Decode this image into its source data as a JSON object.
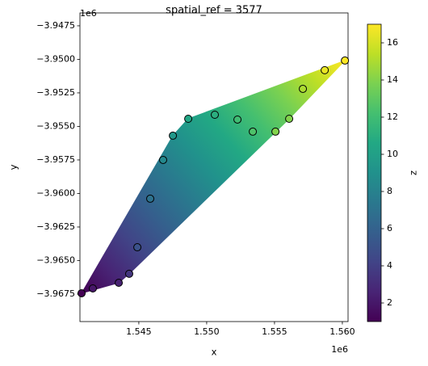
{
  "chart_data": {
    "type": "scatter",
    "title": "spatial_ref = 3577",
    "x_label": "x",
    "y_label": "y",
    "x_offset": "1e6",
    "y_offset": "1e6",
    "colorbar_label": "z",
    "colormap": "viridis",
    "x": [
      1.54078,
      1.54161,
      1.54352,
      1.54429,
      1.54489,
      1.54584,
      1.54679,
      1.54751,
      1.54864,
      1.5506,
      1.55227,
      1.5534,
      1.55507,
      1.55608,
      1.55709,
      1.5587,
      1.56019
    ],
    "y": [
      -3.96744,
      -3.96708,
      -3.96666,
      -3.96599,
      -3.96401,
      -3.96039,
      -3.9575,
      -3.95569,
      -3.95443,
      -3.95413,
      -3.95449,
      -3.95539,
      -3.95539,
      -3.95443,
      -3.9522,
      -3.95081,
      -3.95009
    ],
    "z": [
      1,
      2,
      2.5,
      3.5,
      5,
      7,
      8.5,
      9.5,
      10.5,
      11,
      12,
      12.5,
      14,
      14,
      15,
      16.5,
      17
    ],
    "xlim": [
      1.54066,
      1.56042
    ],
    "ylim": [
      -3.96955,
      -3.94654
    ],
    "zlim": [
      1,
      17
    ],
    "xticks": [
      1.545,
      {
        "value": 1.55,
        "label": "1.550"
      },
      1.555,
      {
        "value": 1.56,
        "label": "1.560"
      }
    ],
    "yticks": [
      {
        "value": -3.9475,
        "label": "−3.9475"
      },
      {
        "value": -3.95,
        "label": "−3.9500"
      },
      {
        "value": -3.9525,
        "label": "−3.9525"
      },
      {
        "value": -3.955,
        "label": "−3.9550"
      },
      {
        "value": -3.9575,
        "label": "−3.9575"
      },
      {
        "value": -3.96,
        "label": "−3.9600"
      },
      {
        "value": -3.9625,
        "label": "−3.9625"
      },
      {
        "value": -3.965,
        "label": "−3.9650"
      },
      {
        "value": -3.9675,
        "label": "−3.9675"
      }
    ],
    "zticks": [
      2,
      4,
      6,
      8,
      10,
      12,
      14,
      16
    ]
  }
}
